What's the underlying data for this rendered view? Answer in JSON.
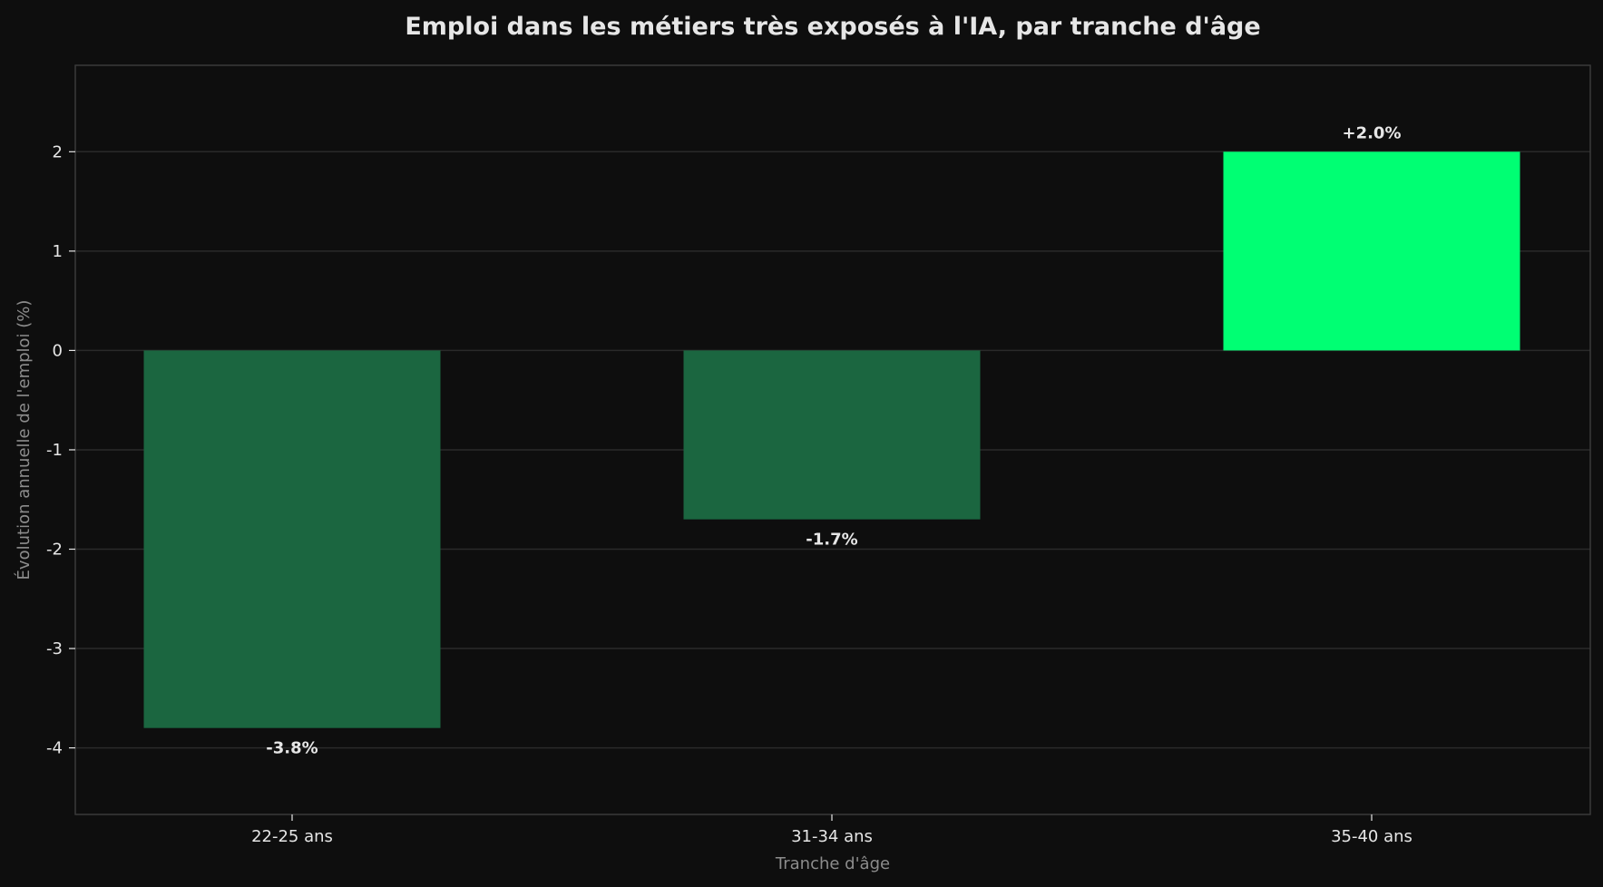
{
  "chart_data": {
    "type": "bar",
    "title": "Emploi dans les métiers très exposés à l'IA, par tranche d'âge",
    "xlabel": "Tranche d'âge",
    "ylabel": "Évolution annuelle de l'emploi (%)",
    "categories": [
      "22-25 ans",
      "31-34 ans",
      "35-40 ans"
    ],
    "values": [
      -3.8,
      -1.7,
      2.0
    ],
    "value_labels": [
      "-3.8%",
      "-1.7%",
      "+2.0%"
    ],
    "bar_colors": [
      "#1b6640",
      "#1b6640",
      "#00ff73"
    ],
    "ylim": [
      -4.67,
      2.87
    ],
    "yticks": [
      2,
      1,
      0,
      -1,
      -2,
      -3,
      -4
    ],
    "ytick_labels": [
      "2",
      "1",
      "0",
      "-1",
      "-2",
      "-3",
      "-4"
    ],
    "grid": true,
    "legend": "none",
    "colors": {
      "background": "#0e0e0e",
      "grid": "#2a2a2a",
      "frame": "#3a3a3a",
      "text": "#e6e6e6",
      "axis_label": "#8c8c8c"
    }
  }
}
